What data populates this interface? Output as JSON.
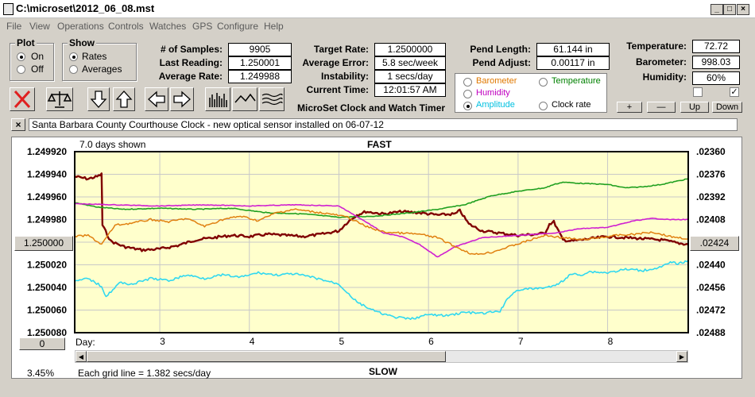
{
  "window": {
    "title": "C:\\microset\\2012_06_08.mst",
    "min_glyph": "_",
    "max_glyph": "□",
    "close_glyph": "×"
  },
  "menu": [
    "File",
    "View",
    "Operations",
    "Controls",
    "Watches",
    "GPS",
    "Configure",
    "Help"
  ],
  "plot_group": {
    "title": "Plot",
    "options": [
      "On",
      "Off"
    ],
    "selected": "On"
  },
  "show_group": {
    "title": "Show",
    "options": [
      "Rates",
      "Averages"
    ],
    "selected": "Rates"
  },
  "stats": {
    "samples_label": "# of Samples:",
    "samples": "9905",
    "last_reading_label": "Last Reading:",
    "last_reading": "1.250001",
    "avg_rate_label": "Average Rate:",
    "avg_rate": "1.249988",
    "target_rate_label": "Target Rate:",
    "target_rate": "1.2500000",
    "avg_error_label": "Average Error:",
    "avg_error": "5.8 sec/week",
    "instability_label": "Instability:",
    "instability": "1 secs/day",
    "current_time_label": "Current Time:",
    "current_time": "12:01:57 AM",
    "pend_length_label": "Pend Length:",
    "pend_length": "61.144 in",
    "pend_adjust_label": "Pend Adjust:",
    "pend_adjust": "0.00117 in",
    "temperature_label": "Temperature:",
    "temperature": "72.72",
    "barometer_label": "Barometer:",
    "barometer": "998.03",
    "humidity_label": "Humidity:",
    "humidity": "60%"
  },
  "sensor_options": [
    {
      "label": "Barometer",
      "color": "#e07800",
      "selected": false
    },
    {
      "label": "Temperature",
      "color": "#008000",
      "selected": false
    },
    {
      "label": "Humidity",
      "color": "#c000c0",
      "selected": false
    },
    {
      "label": "Clock rate",
      "color": "#000000",
      "selected": false
    },
    {
      "label": "Amplitude",
      "color": "#00c0e0",
      "selected": true
    }
  ],
  "adjust_buttons": {
    "plus": "+",
    "minus": "—",
    "up": "Up",
    "down": "Down"
  },
  "checkboxes": [
    {
      "checked": false
    },
    {
      "checked": true
    }
  ],
  "toolbar_caption": "MicroSet Clock and Watch Timer",
  "note": {
    "close_glyph": "×",
    "text": "Santa Barbara County Courthouse Clock - new optical sensor installed on 06-07-12"
  },
  "plot": {
    "days_shown": "7.0 days shown",
    "top_label": "FAST",
    "bottom_label": "SLOW",
    "day_label": "Day:",
    "grid_note": "Each grid line = 1.382 secs/day",
    "percent": "3.45%",
    "center_left_button": "1.250000",
    "center_right_button": ".02424",
    "bottom_left_button": "0",
    "colors": {
      "bg": "#ffffcc",
      "clock": "#800000",
      "temperature": "#20a020",
      "humidity": "#d020d0",
      "barometer": "#e08010",
      "amplitude": "#30d8f0"
    }
  },
  "chart_data": {
    "type": "line",
    "x_ticks": [
      3,
      4,
      5,
      6,
      7,
      8
    ],
    "xlim": [
      2.05,
      8.9
    ],
    "y_left_ticks": [
      "1.249920",
      "1.249940",
      "1.249960",
      "1.249980",
      "1.250000",
      "1.250020",
      "1.250040",
      "1.250060",
      "1.250080"
    ],
    "ylim_left": [
      1.24992,
      1.25008
    ],
    "y_right_ticks": [
      ".02360",
      ".02376",
      ".02392",
      ".02408",
      ".02424",
      ".02440",
      ".02456",
      ".02472",
      ".02488"
    ],
    "ylim_right": [
      0.0236,
      0.02488
    ],
    "series": [
      {
        "name": "Clock rate",
        "color": "#800000",
        "x": [
          2.05,
          2.2,
          2.3,
          2.35,
          2.36,
          2.45,
          2.6,
          2.8,
          3.0,
          3.2,
          3.4,
          3.6,
          3.8,
          4.0,
          4.2,
          4.4,
          4.6,
          4.8,
          5.0,
          5.1,
          5.2,
          5.3,
          5.5,
          5.7,
          5.9,
          6.1,
          6.3,
          6.35,
          6.45,
          6.6,
          6.8,
          7.0,
          7.2,
          7.3,
          7.35,
          7.4,
          7.5,
          7.6,
          7.8,
          8.0,
          8.2,
          8.4,
          8.6,
          8.8,
          8.9
        ],
        "y": [
          1.249942,
          1.249944,
          1.249942,
          1.24994,
          1.249985,
          1.249999,
          1.250004,
          1.250007,
          1.250006,
          1.250003,
          1.249998,
          1.249996,
          1.249994,
          1.249995,
          1.249993,
          1.249994,
          1.249995,
          1.249993,
          1.24999,
          1.249982,
          1.249976,
          1.249973,
          1.249975,
          1.249973,
          1.249974,
          1.249976,
          1.249975,
          1.249972,
          1.249984,
          1.24999,
          1.249992,
          1.249994,
          1.249993,
          1.249992,
          1.249984,
          1.249982,
          1.249998,
          1.249999,
          1.249997,
          1.249995,
          1.249996,
          1.249997,
          1.249998,
          1.250001,
          1.250002
        ]
      },
      {
        "name": "Temperature",
        "color": "#20a020",
        "x": [
          2.05,
          2.3,
          2.6,
          3.0,
          3.4,
          3.8,
          4.2,
          4.6,
          5.0,
          5.4,
          5.8,
          6.1,
          6.4,
          6.7,
          7.0,
          7.3,
          7.4,
          7.5,
          7.7,
          8.0,
          8.2,
          8.4,
          8.6,
          8.9
        ],
        "y": [
          1.249965,
          1.249969,
          1.249971,
          1.24997,
          1.249971,
          1.24997,
          1.249974,
          1.249975,
          1.249978,
          1.249977,
          1.249974,
          1.249971,
          1.249967,
          1.249959,
          1.249955,
          1.249952,
          1.249949,
          1.249947,
          1.249948,
          1.249949,
          1.249952,
          1.249951,
          1.249949,
          1.249944
        ]
      },
      {
        "name": "Humidity",
        "color": "#d020d0",
        "x": [
          2.05,
          2.5,
          3.0,
          3.5,
          4.0,
          4.5,
          5.0,
          5.3,
          5.5,
          5.7,
          5.9,
          6.1,
          6.3,
          6.6,
          7.0,
          7.4,
          7.7,
          8.0,
          8.3,
          8.5,
          8.7,
          8.9
        ],
        "y": [
          1.249966,
          1.249967,
          1.249968,
          1.249967,
          1.249968,
          1.249967,
          1.249968,
          1.249982,
          1.249992,
          1.249995,
          1.250002,
          1.250013,
          1.250004,
          1.249996,
          1.249994,
          1.249992,
          1.249988,
          1.249987,
          1.249981,
          1.249979,
          1.24998,
          1.24998
        ]
      },
      {
        "name": "Barometer",
        "color": "#e08010",
        "x": [
          2.05,
          2.2,
          2.35,
          2.5,
          2.7,
          2.9,
          3.1,
          3.3,
          3.5,
          3.7,
          3.9,
          4.1,
          4.3,
          4.5,
          4.7,
          4.9,
          5.1,
          5.3,
          5.5,
          5.7,
          5.9,
          6.1,
          6.3,
          6.5,
          6.7,
          6.9,
          7.1,
          7.3,
          7.5,
          7.7,
          7.9,
          8.1,
          8.3,
          8.5,
          8.7,
          8.9
        ],
        "y": [
          1.249995,
          1.249994,
          1.250002,
          1.249985,
          1.249983,
          1.24998,
          1.249982,
          1.249979,
          1.249986,
          1.24998,
          1.249977,
          1.249981,
          1.249974,
          1.249971,
          1.249973,
          1.249975,
          1.249978,
          1.249986,
          1.249991,
          1.249992,
          1.249993,
          1.249996,
          1.250004,
          1.250011,
          1.250009,
          1.250004,
          1.249999,
          1.249994,
          1.249996,
          1.249998,
          1.249996,
          1.249994,
          1.249993,
          1.249991,
          1.249995,
          1.249997
        ]
      },
      {
        "name": "Amplitude",
        "color": "#30d8f0",
        "x": [
          2.05,
          2.2,
          2.35,
          2.4,
          2.55,
          2.7,
          2.9,
          3.1,
          3.3,
          3.5,
          3.7,
          3.9,
          4.1,
          4.3,
          4.5,
          4.7,
          4.9,
          5.0,
          5.2,
          5.4,
          5.6,
          5.8,
          6.0,
          6.2,
          6.4,
          6.6,
          6.8,
          6.9,
          7.0,
          7.2,
          7.4,
          7.5,
          7.6,
          7.7,
          7.8,
          8.0,
          8.2,
          8.4,
          8.6,
          8.7,
          8.8,
          8.9
        ],
        "y": [
          1.250035,
          1.250032,
          1.250039,
          1.250048,
          1.250036,
          1.250037,
          1.250032,
          1.250034,
          1.250029,
          1.250032,
          1.250029,
          1.250031,
          1.250027,
          1.250029,
          1.250028,
          1.250031,
          1.250035,
          1.250037,
          1.250053,
          1.250061,
          1.250066,
          1.250068,
          1.250064,
          1.250065,
          1.250062,
          1.250063,
          1.250061,
          1.250048,
          1.250042,
          1.250041,
          1.250039,
          1.250034,
          1.250028,
          1.250029,
          1.250026,
          1.250027,
          1.250024,
          1.250025,
          1.250022,
          1.250018,
          1.250019,
          1.250016
        ]
      }
    ]
  }
}
